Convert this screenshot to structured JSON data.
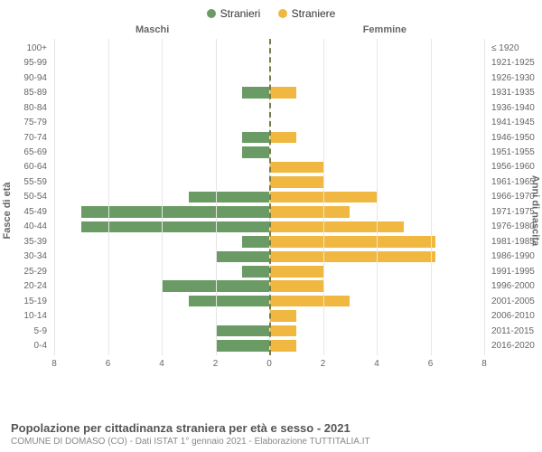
{
  "legend": {
    "male": {
      "label": "Stranieri",
      "color": "#6b9b64"
    },
    "female": {
      "label": "Straniere",
      "color": "#f0b840"
    }
  },
  "headers": {
    "left": "Maschi",
    "right": "Femmine"
  },
  "axis_titles": {
    "left": "Fasce di età",
    "right": "Anni di nascita"
  },
  "chart": {
    "type": "population-pyramid",
    "x_max": 8,
    "x_ticks": [
      8,
      6,
      4,
      2,
      0,
      2,
      4,
      6,
      8
    ],
    "background_color": "#ffffff",
    "grid_color": "#e6e6e6",
    "center_line_color": "#7b7b49",
    "categories": [
      {
        "age": "100+",
        "birth": "≤ 1920",
        "m": 0,
        "f": 0
      },
      {
        "age": "95-99",
        "birth": "1921-1925",
        "m": 0,
        "f": 0
      },
      {
        "age": "90-94",
        "birth": "1926-1930",
        "m": 0,
        "f": 0
      },
      {
        "age": "85-89",
        "birth": "1931-1935",
        "m": 1,
        "f": 1
      },
      {
        "age": "80-84",
        "birth": "1936-1940",
        "m": 0,
        "f": 0
      },
      {
        "age": "75-79",
        "birth": "1941-1945",
        "m": 0,
        "f": 0
      },
      {
        "age": "70-74",
        "birth": "1946-1950",
        "m": 1,
        "f": 1
      },
      {
        "age": "65-69",
        "birth": "1951-1955",
        "m": 1,
        "f": 0
      },
      {
        "age": "60-64",
        "birth": "1956-1960",
        "m": 0,
        "f": 2
      },
      {
        "age": "55-59",
        "birth": "1961-1965",
        "m": 0,
        "f": 2
      },
      {
        "age": "50-54",
        "birth": "1966-1970",
        "m": 3,
        "f": 4
      },
      {
        "age": "45-49",
        "birth": "1971-1975",
        "m": 7,
        "f": 3
      },
      {
        "age": "40-44",
        "birth": "1976-1980",
        "m": 7,
        "f": 5
      },
      {
        "age": "35-39",
        "birth": "1981-1985",
        "m": 1,
        "f": 6.2
      },
      {
        "age": "30-34",
        "birth": "1986-1990",
        "m": 2,
        "f": 6.2
      },
      {
        "age": "25-29",
        "birth": "1991-1995",
        "m": 1,
        "f": 2
      },
      {
        "age": "20-24",
        "birth": "1996-2000",
        "m": 4,
        "f": 2
      },
      {
        "age": "15-19",
        "birth": "2001-2005",
        "m": 3,
        "f": 3
      },
      {
        "age": "10-14",
        "birth": "2006-2010",
        "m": 0,
        "f": 1
      },
      {
        "age": "5-9",
        "birth": "2011-2015",
        "m": 2,
        "f": 1
      },
      {
        "age": "0-4",
        "birth": "2016-2020",
        "m": 2,
        "f": 1
      }
    ]
  },
  "footer": {
    "title": "Popolazione per cittadinanza straniera per età e sesso - 2021",
    "subtitle": "COMUNE DI DOMASO (CO) - Dati ISTAT 1° gennaio 2021 - Elaborazione TUTTITALIA.IT"
  }
}
